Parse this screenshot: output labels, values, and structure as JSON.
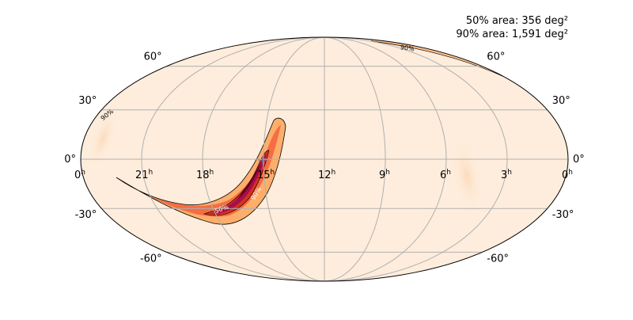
{
  "annotations": {
    "area50": "50% area: 356 deg²",
    "area90": "90% area: 1,591 deg²"
  },
  "map": {
    "projection": "mollweide",
    "ra_labels": [
      {
        "hours": 24,
        "text": "0h"
      },
      {
        "hours": 21,
        "text": "21h"
      },
      {
        "hours": 18,
        "text": "18h"
      },
      {
        "hours": 15,
        "text": "15h"
      },
      {
        "hours": 12,
        "text": "12h"
      },
      {
        "hours": 9,
        "text": "9h"
      },
      {
        "hours": 6,
        "text": "6h"
      },
      {
        "hours": 3,
        "text": "3h"
      },
      {
        "hours": 0,
        "text": "0h"
      }
    ],
    "dec_labels": [
      {
        "dec": 60,
        "text": "60°"
      },
      {
        "dec": 30,
        "text": "30°"
      },
      {
        "dec": 0,
        "text": "0°"
      },
      {
        "dec": -30,
        "text": "-30°"
      },
      {
        "dec": -60,
        "text": "-60°"
      }
    ],
    "contour_labels": [
      "50%",
      "90%"
    ],
    "colors": {
      "background": "#feeddc",
      "low": "#fdd0a2",
      "mid": "#fc8d59",
      "high": "#d7301f",
      "peak": "#a50f4a",
      "max": "#67001f",
      "grid": "#b0b0b0",
      "contour": "#000000"
    },
    "skymap_arc_ra_dec": [
      [
        15.1,
        5
      ],
      [
        15.3,
        1
      ],
      [
        15.6,
        -4
      ],
      [
        16.1,
        -10
      ],
      [
        16.8,
        -16
      ],
      [
        17.6,
        -21
      ],
      [
        18.6,
        -25
      ],
      [
        19.8,
        -28
      ],
      [
        21.0,
        -30
      ],
      [
        22.2,
        -30.5
      ],
      [
        23.4,
        -30
      ]
    ]
  }
}
